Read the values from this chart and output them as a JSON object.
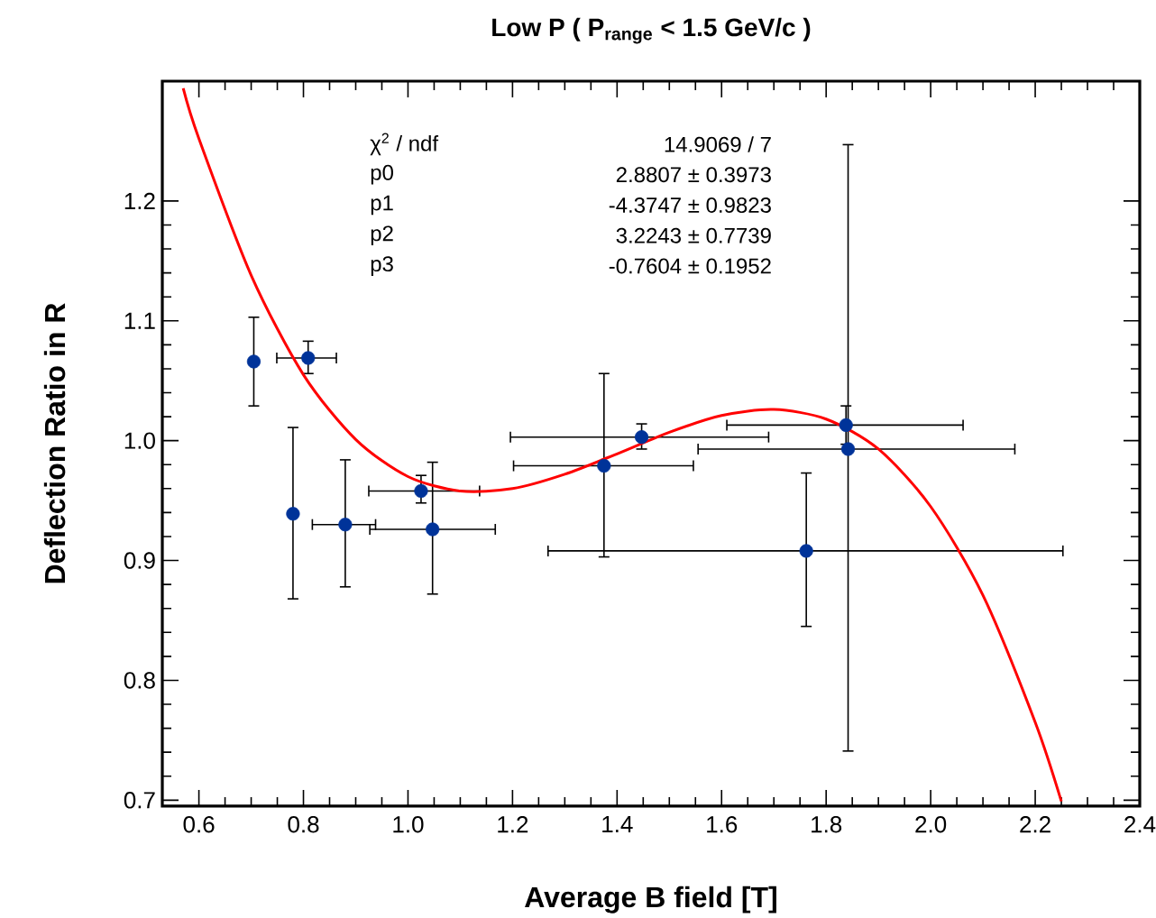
{
  "chart_data": {
    "type": "scatter",
    "title": "Low P ( P$_{range}$ < 1.5 GeV/c )",
    "xlabel": "Average B field [T]",
    "ylabel": "Deflection Ratio in R",
    "xlim": [
      0.53,
      2.4
    ],
    "xticks": [
      0.6,
      0.8,
      {
        "value": 1.0,
        "label": "1.0"
      },
      1.2,
      1.4,
      1.6,
      1.8,
      {
        "value": 2.0,
        "label": "2.0"
      },
      2.2,
      2.4
    ],
    "ylim": [
      0.695,
      1.3
    ],
    "yticks": [
      0.7,
      0.8,
      0.9,
      {
        "value": 1.0,
        "label": "1.0"
      },
      1.1,
      1.2
    ],
    "annotations": [
      "χ$^{2}$ / ndf",
      "14.9069 / 7",
      "p0",
      "2.8807 ± 0.3973",
      "p1",
      "-4.3747 ± 0.9823",
      "p2",
      "3.2243 ± 0.7739",
      "p3",
      "-0.7604 ± 0.1952"
    ],
    "series": [
      {
        "color": "#003399",
        "x": [
          0.705,
          0.809,
          0.78,
          0.88,
          1.025,
          1.047,
          1.375,
          1.447,
          1.762,
          1.838,
          1.842
        ],
        "values": [
          1.066,
          1.069,
          0.939,
          0.93,
          0.958,
          0.926,
          0.979,
          1.003,
          0.908,
          1.013,
          0.993
        ],
        "errors": [
          [
            1.029,
            1.103
          ],
          [
            1.056,
            1.083
          ],
          [
            0.868,
            1.011
          ],
          [
            0.878,
            0.984
          ],
          [
            0.948,
            0.971
          ],
          [
            0.872,
            0.982
          ],
          [
            0.903,
            1.056
          ],
          [
            0.993,
            1.014
          ],
          [
            0.845,
            0.973
          ],
          [
            0.997,
            1.029
          ],
          [
            0.741,
            1.247
          ]
        ],
        "xerrors": [
          null,
          [
            0.749,
            0.863
          ],
          null,
          [
            0.817,
            0.938
          ],
          [
            0.925,
            1.137
          ],
          [
            0.927,
            1.167
          ],
          [
            1.202,
            1.546
          ],
          [
            1.196,
            1.69
          ],
          [
            1.268,
            2.253
          ],
          [
            1.61,
            2.062
          ],
          [
            1.555,
            2.161
          ]
        ]
      },
      {
        "type": "line",
        "color": "#ff0000",
        "line_style": "solid",
        "x": [
          0.57,
          0.6,
          0.7,
          0.8,
          0.9,
          1.0,
          1.1,
          1.2,
          1.3,
          1.4,
          1.5,
          1.6,
          1.7,
          1.8,
          1.9,
          2.0,
          2.1,
          2.2,
          2.25
        ],
        "values": [
          1.294,
          1.252,
          1.138,
          1.055,
          1.001,
          0.97,
          0.958,
          0.96,
          0.972,
          0.989,
          1.007,
          1.021,
          1.026,
          1.018,
          0.993,
          0.945,
          0.871,
          0.765,
          0.699
        ]
      }
    ]
  }
}
